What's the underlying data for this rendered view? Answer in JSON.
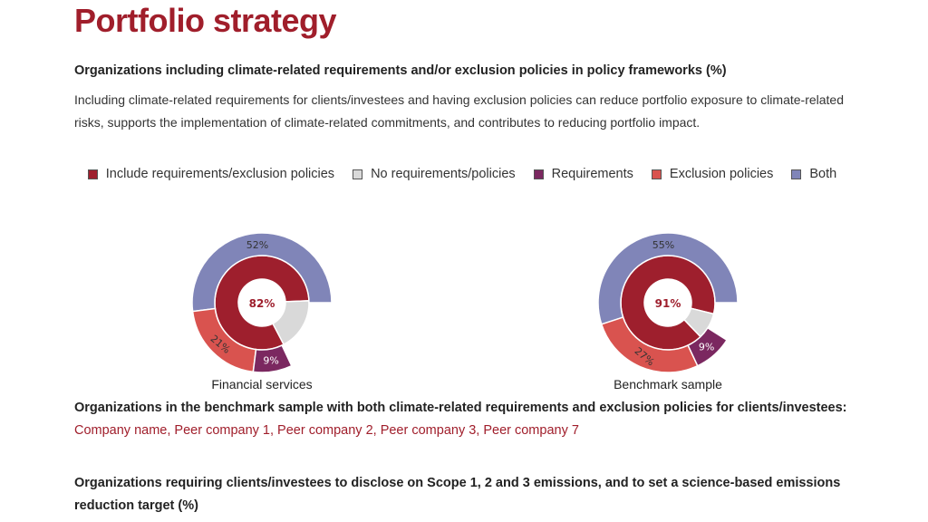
{
  "page": {
    "title": "Portfolio strategy",
    "subheading": "Organizations including climate-related requirements and/or exclusion policies in policy frameworks (%)",
    "intro": "Including climate-related requirements for clients/investees and having exclusion policies can reduce portfolio exposure to climate-related risks, supports the implementation of climate-related commitments, and contributes to reducing portfolio impact.",
    "benchmark_label": "Organizations in the benchmark sample with both climate-related requirements and exclusion policies for clients/investees:",
    "benchmark_companies": "Company name, Peer company 1, Peer company 2, Peer company 3, Peer company 7",
    "next_heading": "Organizations requiring clients/investees to disclose on Scope 1, 2 and 3 emissions, and to set a science-based emissions reduction target (%)"
  },
  "legend": [
    {
      "key": "include",
      "label": "Include requirements/exclusion policies",
      "color": "#9e1f2d"
    },
    {
      "key": "none",
      "label": "No requirements/policies",
      "color": "#d9d9d9"
    },
    {
      "key": "requirements",
      "label": "Requirements",
      "color": "#7b2860"
    },
    {
      "key": "exclusion",
      "label": "Exclusion policies",
      "color": "#d9534f"
    },
    {
      "key": "both",
      "label": "Both",
      "color": "#8085b8"
    }
  ],
  "chart_data": [
    {
      "type": "pie",
      "caption": "Financial services",
      "inner": {
        "include": 82,
        "none": 18
      },
      "outer": {
        "both": 52,
        "exclusion": 21,
        "requirements": 9
      },
      "labels": {
        "center": "82%",
        "both": "52%",
        "exclusion": "21%",
        "requirements": "9%"
      }
    },
    {
      "type": "pie",
      "caption": "Benchmark sample",
      "inner": {
        "include": 91,
        "none": 9
      },
      "outer": {
        "both": 55,
        "exclusion": 27,
        "requirements": 9
      },
      "labels": {
        "center": "91%",
        "both": "55%",
        "exclusion": "27%",
        "requirements": "9%"
      }
    }
  ]
}
